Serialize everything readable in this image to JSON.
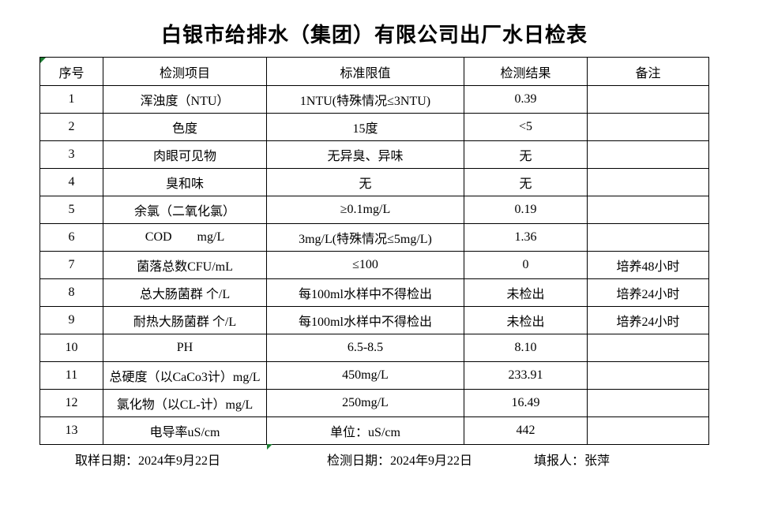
{
  "title": "白银市给排水（集团）有限公司出厂水日检表",
  "table": {
    "headers": [
      "序号",
      "检测项目",
      "标准限值",
      "检测结果",
      "备注"
    ],
    "rows": [
      {
        "no": "1",
        "item": "浑浊度（NTU）",
        "limit": "1NTU(特殊情况≤3NTU)",
        "result": "0.39",
        "note": ""
      },
      {
        "no": "2",
        "item": "色度",
        "limit": "15度",
        "result": "<5",
        "note": ""
      },
      {
        "no": "3",
        "item": "肉眼可见物",
        "limit": "无异臭、异味",
        "result": "无",
        "note": ""
      },
      {
        "no": "4",
        "item": "臭和味",
        "limit": "无",
        "result": "无",
        "note": ""
      },
      {
        "no": "5",
        "item": "余氯（二氧化氯）",
        "limit": "≥0.1mg/L",
        "result": "0.19",
        "note": ""
      },
      {
        "no": "6",
        "item": "COD        mg/L",
        "limit": "3mg/L(特殊情况≤5mg/L)",
        "result": "1.36",
        "note": ""
      },
      {
        "no": "7",
        "item": "菌落总数CFU/mL",
        "limit": "≤100",
        "result": "0",
        "note": "培养48小时"
      },
      {
        "no": "8",
        "item": "总大肠菌群 个/L",
        "limit": "每100ml水样中不得检出",
        "result": "未检出",
        "note": "培养24小时"
      },
      {
        "no": "9",
        "item": "耐热大肠菌群 个/L",
        "limit": "每100ml水样中不得检出",
        "result": "未检出",
        "note": "培养24小时"
      },
      {
        "no": "10",
        "item": "PH",
        "limit": "6.5-8.5",
        "result": "8.10",
        "note": ""
      },
      {
        "no": "11",
        "item": "总硬度（以CaCo3计）mg/L",
        "limit": "450mg/L",
        "result": "233.91",
        "note": ""
      },
      {
        "no": "12",
        "item": "氯化物（以CL-计）mg/L",
        "limit": "250mg/L",
        "result": "16.49",
        "note": ""
      },
      {
        "no": "13",
        "item": "电导率uS/cm",
        "limit": "单位：uS/cm",
        "result": "442",
        "note": ""
      }
    ]
  },
  "footer": {
    "sample_date": "取样日期：2024年9月22日",
    "test_date": "检测日期：2024年9月22日",
    "reporter": "填报人：张萍"
  },
  "colors": {
    "grid": "#000000",
    "background": "#ffffff",
    "error_indicator_green": "#1e7e34"
  }
}
